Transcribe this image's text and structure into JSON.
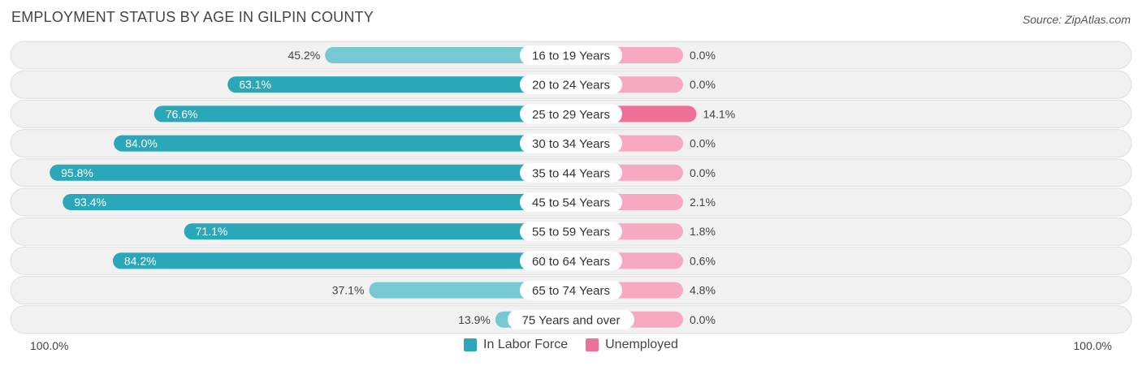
{
  "title": "EMPLOYMENT STATUS BY AGE IN GILPIN COUNTY",
  "source": "Source: ZipAtlas.com",
  "colors": {
    "labor_strong": "#2aa7b8",
    "labor_light": "#76c8d3",
    "unemp_strong": "#f06f97",
    "unemp_light": "#f6a9c1",
    "row_bg": "#f1f1f1",
    "row_border": "#dddddd"
  },
  "chart_data": {
    "type": "bar",
    "orientation": "horizontal-diverging",
    "title": "EMPLOYMENT STATUS BY AGE IN GILPIN COUNTY",
    "categories": [
      "16 to 19 Years",
      "20 to 24 Years",
      "25 to 29 Years",
      "30 to 34 Years",
      "35 to 44 Years",
      "45 to 54 Years",
      "55 to 59 Years",
      "60 to 64 Years",
      "65 to 74 Years",
      "75 Years and over"
    ],
    "series": [
      {
        "name": "In Labor Force",
        "values": [
          45.2,
          63.1,
          76.6,
          84.0,
          95.8,
          93.4,
          71.1,
          84.2,
          37.1,
          13.9
        ],
        "labels": [
          "45.2%",
          "63.1%",
          "76.6%",
          "84.0%",
          "95.8%",
          "93.4%",
          "71.1%",
          "84.2%",
          "37.1%",
          "13.9%"
        ]
      },
      {
        "name": "Unemployed",
        "values": [
          0.0,
          0.0,
          14.1,
          0.0,
          0.0,
          2.1,
          1.8,
          0.6,
          4.8,
          0.0
        ],
        "labels": [
          "0.0%",
          "0.0%",
          "14.1%",
          "0.0%",
          "0.0%",
          "2.1%",
          "1.8%",
          "0.6%",
          "4.8%",
          "0.0%"
        ]
      }
    ],
    "xlim": [
      -100,
      100
    ],
    "axis_labels": {
      "left": "100.0%",
      "right": "100.0%"
    },
    "legend": {
      "position": "bottom-center"
    }
  }
}
